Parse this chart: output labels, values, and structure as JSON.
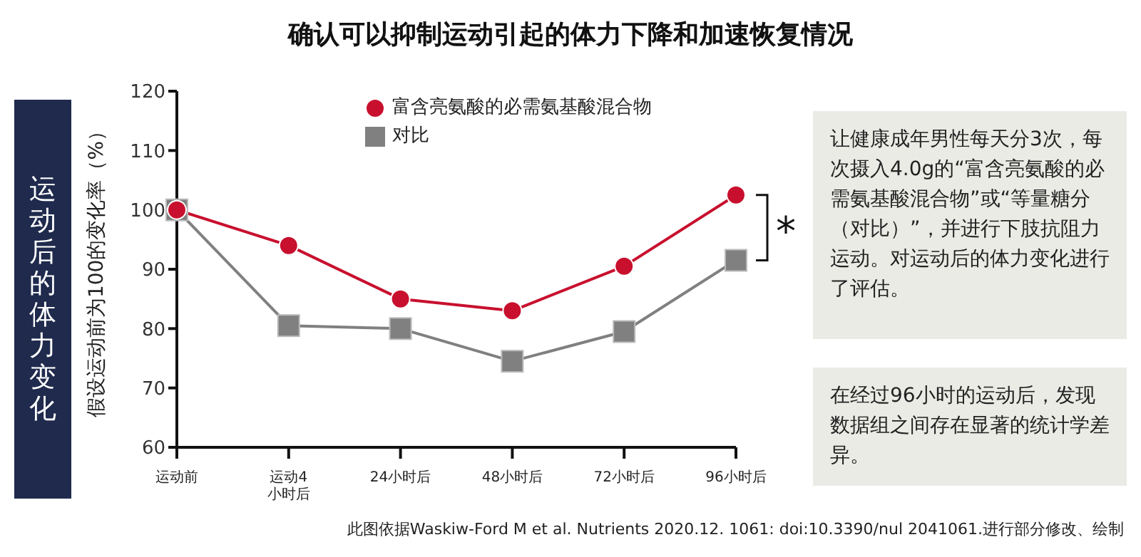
{
  "chart_data": {
    "type": "line",
    "title": "确认可以抑制运动引起的体力下降和加速恢复情况",
    "ylabel": "假设运动前为100的变化率（%）",
    "categories": [
      "运动前",
      "运动4小时后",
      "24小时后",
      "48小时后",
      "72小时后",
      "96小时后"
    ],
    "ylim": [
      60,
      120
    ],
    "yticks": [
      60,
      70,
      80,
      90,
      100,
      110,
      120
    ],
    "series": [
      {
        "name": "富含亮氨酸的必需氨基酸混合物",
        "color": "#c8102e",
        "marker": "circle",
        "values": [
          100,
          94,
          85,
          83,
          90.5,
          102.5
        ]
      },
      {
        "name": "对比",
        "color": "#808080",
        "marker": "square",
        "values": [
          100,
          80.5,
          80,
          74.5,
          79.5,
          91.5
        ]
      }
    ],
    "grid": false,
    "legend": "top",
    "annotations": [
      "运动后的体力变化",
      "让健康成年男性每天分3次，每次摄入4.0g的“富含亮氨酸的必需氨基酸混合物”或“等量糖分（对比）”，并进行下肢抗阻力运动。对运动后的体力变化进行了评估。",
      "在经过96小时的运动后，发现数据组之间存在显著的统计学差异。",
      "*",
      "此图依据Waskiw-Ford M et al. Nutrients 2020.12. 1061: doi:10.3390/nul 2041061.进行部分修改、绘制"
    ]
  }
}
